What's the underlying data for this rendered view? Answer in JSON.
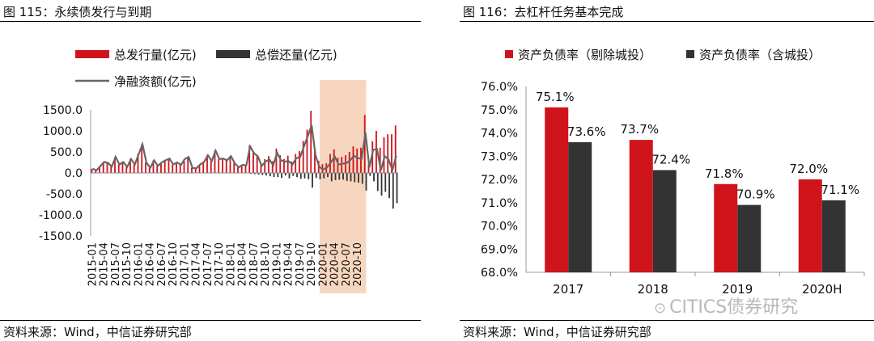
{
  "left": {
    "figure_title": "图 115：永续债发行与到期",
    "source": "资料来源：Wind，中信证券研究部"
  },
  "right": {
    "figure_title": "图 116：去杠杆任务基本完成",
    "source": "资料来源：Wind，中信证券研究部",
    "watermark": "CITICS债券研究"
  },
  "chart_data": [
    {
      "type": "bar",
      "title": "图 115：永续债发行与到期",
      "xlabel": "",
      "ylabel": "",
      "ylim": [
        -1500,
        1500
      ],
      "yticks": [
        1500.0,
        1000.0,
        500.0,
        0.0,
        -500.0,
        -1000.0,
        -1500.0
      ],
      "ytick_labels": [
        "1500.0",
        "1000.0",
        "500.0",
        "0.0",
        "-500.0",
        "-1000.0",
        "-1500.0"
      ],
      "x_tick_labels": [
        "2015-01",
        "2015-04",
        "2015-07",
        "2015-10",
        "2016-01",
        "2016-04",
        "2016-07",
        "2016-10",
        "2017-01",
        "2017-04",
        "2017-07",
        "2017-10",
        "2018-01",
        "2018-04",
        "2018-07",
        "2018-10",
        "2019-01",
        "2019-04",
        "2019-07",
        "2019-10",
        "2020-01",
        "2020-04",
        "2020-07",
        "2020-10"
      ],
      "x_start": "2015-01",
      "highlight_range": [
        "2020-01",
        "2020-11"
      ],
      "legend_placement": "top",
      "series": [
        {
          "name": "总发行量(亿元)",
          "kind": "bar",
          "color": "#d0141c",
          "values": [
            100,
            60,
            160,
            260,
            240,
            150,
            380,
            200,
            260,
            140,
            330,
            200,
            450,
            680,
            250,
            120,
            300,
            170,
            250,
            300,
            340,
            200,
            250,
            190,
            330,
            380,
            120,
            110,
            200,
            260,
            420,
            280,
            530,
            330,
            340,
            300,
            400,
            230,
            130,
            190,
            180,
            650,
            500,
            430,
            220,
            330,
            400,
            280,
            580,
            420,
            330,
            410,
            270,
            450,
            520,
            760,
            1030,
            1480,
            540,
            290,
            210,
            230,
            450,
            560,
            360,
            380,
            420,
            500,
            630,
            580,
            600,
            1380,
            200,
            750,
            1000,
            600,
            850,
            920,
            920,
            1130
          ]
        },
        {
          "name": "总偿还量(亿元)",
          "kind": "bar",
          "color": "#333333",
          "values": [
            0,
            0,
            0,
            0,
            0,
            0,
            0,
            0,
            0,
            0,
            0,
            0,
            0,
            0,
            0,
            0,
            0,
            0,
            0,
            0,
            0,
            0,
            0,
            0,
            0,
            0,
            0,
            0,
            0,
            0,
            0,
            0,
            0,
            0,
            0,
            0,
            0,
            0,
            0,
            0,
            0,
            -20,
            -30,
            -40,
            -50,
            -60,
            -80,
            -100,
            -100,
            -120,
            -60,
            -130,
            -70,
            -100,
            -140,
            -130,
            -150,
            -350,
            -120,
            -150,
            -130,
            -100,
            -200,
            -170,
            -160,
            -160,
            -190,
            -200,
            -220,
            -230,
            -260,
            -420,
            -70,
            -200,
            -430,
            -540,
            -450,
            -600,
            -850,
            -720
          ]
        },
        {
          "name": "净融资额(亿元)",
          "kind": "line",
          "color": "#666666",
          "values": [
            100,
            60,
            160,
            260,
            240,
            150,
            380,
            200,
            260,
            140,
            330,
            200,
            450,
            680,
            250,
            120,
            300,
            170,
            250,
            300,
            340,
            200,
            250,
            190,
            330,
            380,
            120,
            110,
            200,
            260,
            420,
            280,
            530,
            330,
            340,
            300,
            400,
            230,
            130,
            190,
            180,
            630,
            470,
            390,
            170,
            270,
            320,
            180,
            480,
            300,
            270,
            280,
            200,
            350,
            380,
            630,
            880,
            1130,
            420,
            140,
            80,
            130,
            250,
            390,
            200,
            220,
            230,
            300,
            410,
            350,
            340,
            960,
            130,
            550,
            570,
            60,
            400,
            320,
            70,
            410
          ]
        }
      ]
    },
    {
      "type": "bar",
      "title": "图 116：去杠杆任务基本完成",
      "xlabel": "",
      "ylabel": "",
      "ylim": [
        68.0,
        76.0
      ],
      "yticks": [
        76.0,
        75.0,
        74.0,
        73.0,
        72.0,
        71.0,
        70.0,
        69.0,
        68.0
      ],
      "ytick_labels": [
        "76.0%",
        "75.0%",
        "74.0%",
        "73.0%",
        "72.0%",
        "71.0%",
        "70.0%",
        "69.0%",
        "68.0%"
      ],
      "categories": [
        "2017",
        "2018",
        "2019",
        "2020H"
      ],
      "category_labels": [
        "2017",
        "2018",
        "2019",
        "2020H"
      ],
      "legend_placement": "top",
      "series": [
        {
          "name": "资产负债率（剔除城投）",
          "color": "#d0141c",
          "values": [
            75.1,
            73.7,
            71.8,
            72.0
          ],
          "labels": [
            "75.1%",
            "73.7%",
            "71.8%",
            "72.0%"
          ]
        },
        {
          "name": "资产负债率（含城投）",
          "color": "#333333",
          "values": [
            73.6,
            72.4,
            70.9,
            71.1
          ],
          "labels": [
            "73.6%",
            "72.4%",
            "70.9%",
            "71.1%"
          ]
        }
      ]
    }
  ]
}
